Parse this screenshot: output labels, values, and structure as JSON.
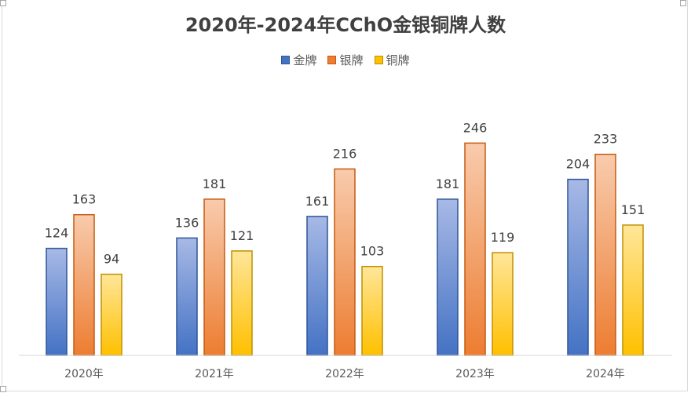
{
  "chart_data": {
    "type": "bar",
    "title": "2020年-2024年CChO金银铜牌人数",
    "categories": [
      "2020年",
      "2021年",
      "2022年",
      "2023年",
      "2024年"
    ],
    "series": [
      {
        "name": "金牌",
        "values": [
          124,
          136,
          161,
          181,
          204
        ]
      },
      {
        "name": "银牌",
        "values": [
          163,
          181,
          216,
          246,
          233
        ]
      },
      {
        "name": "铜牌",
        "values": [
          94,
          121,
          103,
          119,
          151
        ]
      }
    ],
    "ylim": [
      0,
      280
    ],
    "grid": false,
    "legend_position": "top",
    "data_labels": true
  },
  "colors": {
    "gold": {
      "top": "#a7b9e6",
      "bottom": "#4472c4",
      "border": "#2f5597"
    },
    "silver": {
      "top": "#f8cbad",
      "bottom": "#ed7d31",
      "border": "#c55a11"
    },
    "bronze": {
      "top": "#ffe699",
      "bottom": "#ffc000",
      "border": "#bf9000"
    }
  }
}
